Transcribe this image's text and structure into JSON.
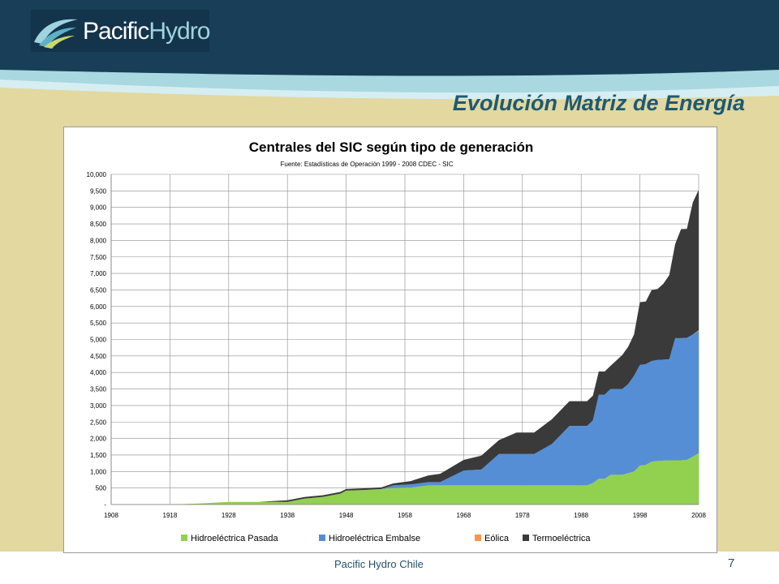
{
  "header": {
    "logo_text_a": "Pacific",
    "logo_text_b": "Hydro"
  },
  "slide": {
    "title": "Evolución Matriz de Energía",
    "footer": "Pacific Hydro Chile",
    "page_number": "7"
  },
  "colors": {
    "header_dark": "#183f57",
    "title_blue": "#1e5a72",
    "beige_bg": "#e2d8a0",
    "series_pasada": "#92d050",
    "series_embalse": "#558ed5",
    "series_eolica": "#f79646",
    "series_termo": "#3a3a3a"
  },
  "chart_data": {
    "type": "area",
    "stacked": true,
    "title": "Centrales del SIC según tipo de generación",
    "subtitle": "Fuente: Estadísticas de Operación 1999 - 2008 CDEC - SIC",
    "xlabel": "",
    "ylabel": "",
    "xlim": [
      1908,
      2008
    ],
    "ylim": [
      0,
      10000
    ],
    "x_ticks": [
      1908,
      1918,
      1928,
      1938,
      1948,
      1958,
      1968,
      1978,
      1988,
      1998,
      2008
    ],
    "y_ticks": [
      0,
      500,
      1000,
      1500,
      2000,
      2500,
      3000,
      3500,
      4000,
      4500,
      5000,
      5500,
      6000,
      6500,
      7000,
      7500,
      8000,
      8500,
      9000,
      9500,
      10000
    ],
    "y_tick_labels": [
      "-",
      "500",
      "1,000",
      "1,500",
      "2,000",
      "2,500",
      "3,000",
      "3,500",
      "4,000",
      "4,500",
      "5,000",
      "5,500",
      "6,000",
      "6,500",
      "7,000",
      "7,500",
      "8,000",
      "8,500",
      "9,000",
      "9,500",
      "10,000"
    ],
    "grid": true,
    "legend_position": "bottom",
    "x": [
      1908,
      1913,
      1918,
      1923,
      1928,
      1933,
      1938,
      1941,
      1944,
      1947,
      1948,
      1951,
      1954,
      1956,
      1959,
      1962,
      1964,
      1968,
      1971,
      1974,
      1977,
      1980,
      1983,
      1986,
      1989,
      1990,
      1991,
      1992,
      1993,
      1995,
      1996,
      1997,
      1998,
      1999,
      2000,
      2001,
      2002,
      2003,
      2004,
      2005,
      2006,
      2007,
      2008
    ],
    "series": [
      {
        "name": "Hidroeléctrica Pasada",
        "color": "#92d050",
        "values": [
          0,
          0,
          0,
          30,
          80,
          80,
          80,
          180,
          230,
          330,
          420,
          440,
          470,
          500,
          510,
          580,
          580,
          580,
          580,
          580,
          580,
          580,
          580,
          580,
          580,
          650,
          780,
          780,
          900,
          900,
          950,
          1000,
          1180,
          1200,
          1300,
          1320,
          1330,
          1340,
          1340,
          1340,
          1350,
          1450,
          1560
        ]
      },
      {
        "name": "Hidroeléctrica Embalse",
        "color": "#558ed5",
        "values": [
          0,
          0,
          0,
          0,
          0,
          0,
          0,
          0,
          0,
          0,
          0,
          0,
          0,
          80,
          100,
          100,
          100,
          450,
          480,
          950,
          950,
          950,
          1250,
          1800,
          1800,
          1900,
          2550,
          2550,
          2600,
          2600,
          2700,
          2900,
          3050,
          3050,
          3050,
          3060,
          3060,
          3060,
          3700,
          3700,
          3700,
          3700,
          3700
        ]
      },
      {
        "name": "Eólica",
        "color": "#f79646",
        "values": [
          0,
          0,
          0,
          0,
          0,
          0,
          0,
          0,
          0,
          0,
          0,
          0,
          0,
          0,
          0,
          0,
          0,
          0,
          0,
          0,
          0,
          0,
          0,
          0,
          0,
          0,
          0,
          0,
          0,
          0,
          0,
          0,
          0,
          0,
          0,
          0,
          0,
          0,
          0,
          0,
          0,
          0,
          20
        ]
      },
      {
        "name": "Termoeléctrica",
        "color": "#3a3a3a",
        "values": [
          0,
          0,
          0,
          0,
          0,
          0,
          50,
          50,
          50,
          50,
          50,
          50,
          50,
          60,
          100,
          200,
          250,
          320,
          420,
          420,
          650,
          650,
          750,
          750,
          750,
          750,
          700,
          700,
          700,
          1030,
          1130,
          1250,
          1900,
          1900,
          2150,
          2150,
          2300,
          2550,
          2850,
          3300,
          3300,
          4000,
          4250
        ]
      }
    ]
  }
}
